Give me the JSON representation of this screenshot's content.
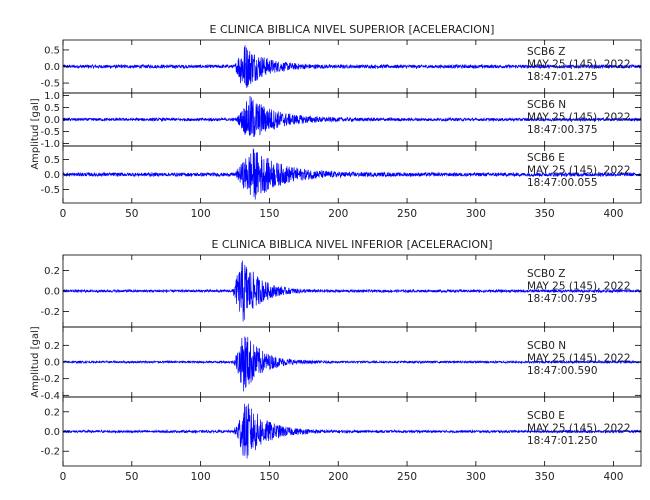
{
  "chart_data": [
    {
      "type": "line",
      "title": "E CLINICA BIBLICA NIVEL SUPERIOR [ACELERACION]",
      "ylabel": "Amplitud [gal]",
      "xlim": [
        0,
        420
      ],
      "x_ticks": [
        "0",
        "50",
        "100",
        "150",
        "200",
        "250",
        "300",
        "350",
        "400"
      ],
      "series_color": "#0000ff",
      "panels": [
        {
          "station": "SCB6",
          "component": "Z",
          "date": "MAY 25 (145), 2022",
          "time": "18:47:01.275",
          "ylim": [
            -0.8,
            0.8
          ],
          "y_ticks": [
            "0.5",
            "0.0",
            "-0.5"
          ],
          "envelope": {
            "noise": 0.05,
            "onset": 125,
            "peak": 131,
            "peak_amp": 0.75,
            "decay": 14
          }
        },
        {
          "station": "SCB6",
          "component": "N",
          "date": "MAY 25 (145), 2022",
          "time": "18:47:00.375",
          "ylim": [
            -1.1,
            1.1
          ],
          "y_ticks": [
            "1.0",
            "0.5",
            "0.0",
            "-0.5",
            "-1.0"
          ],
          "envelope": {
            "noise": 0.06,
            "onset": 126,
            "peak": 136,
            "peak_amp": 0.95,
            "decay": 18
          }
        },
        {
          "station": "SCB6",
          "component": "E",
          "date": "MAY 25 (145), 2022",
          "time": "18:47:00.055",
          "ylim": [
            -0.95,
            0.95
          ],
          "y_ticks": [
            "0.5",
            "0.0",
            "-0.5"
          ],
          "envelope": {
            "noise": 0.06,
            "onset": 125,
            "peak": 138,
            "peak_amp": 0.85,
            "decay": 20
          }
        }
      ]
    },
    {
      "type": "line",
      "title": "E CLINICA BIBLICA NIVEL INFERIOR [ACELERACION]",
      "ylabel": "Amplitud [gal]",
      "xlim": [
        0,
        420
      ],
      "x_ticks": [
        "0",
        "50",
        "100",
        "150",
        "200",
        "250",
        "300",
        "350",
        "400"
      ],
      "series_color": "#0000ff",
      "panels": [
        {
          "station": "SCB0",
          "component": "Z",
          "date": "MAY 25 (145), 2022",
          "time": "18:47:00.795",
          "ylim": [
            -0.35,
            0.35
          ],
          "y_ticks": [
            "0.2",
            "0.0",
            "-0.2"
          ],
          "envelope": {
            "noise": 0.012,
            "onset": 123,
            "peak": 131,
            "peak_amp": 0.32,
            "decay": 12
          }
        },
        {
          "station": "SCB0",
          "component": "N",
          "date": "MAY 25 (145), 2022",
          "time": "18:47:00.590",
          "ylim": [
            -0.42,
            0.42
          ],
          "y_ticks": [
            "0.2",
            "0.0",
            "-0.2",
            "-0.4"
          ],
          "envelope": {
            "noise": 0.012,
            "onset": 124,
            "peak": 132,
            "peak_amp": 0.38,
            "decay": 12
          }
        },
        {
          "station": "SCB0",
          "component": "E",
          "date": "MAY 25 (145), 2022",
          "time": "18:47:01.250",
          "ylim": [
            -0.35,
            0.35
          ],
          "y_ticks": [
            "0.2",
            "0.0",
            "-0.2"
          ],
          "envelope": {
            "noise": 0.012,
            "onset": 124,
            "peak": 133,
            "peak_amp": 0.31,
            "decay": 14
          }
        }
      ]
    }
  ]
}
